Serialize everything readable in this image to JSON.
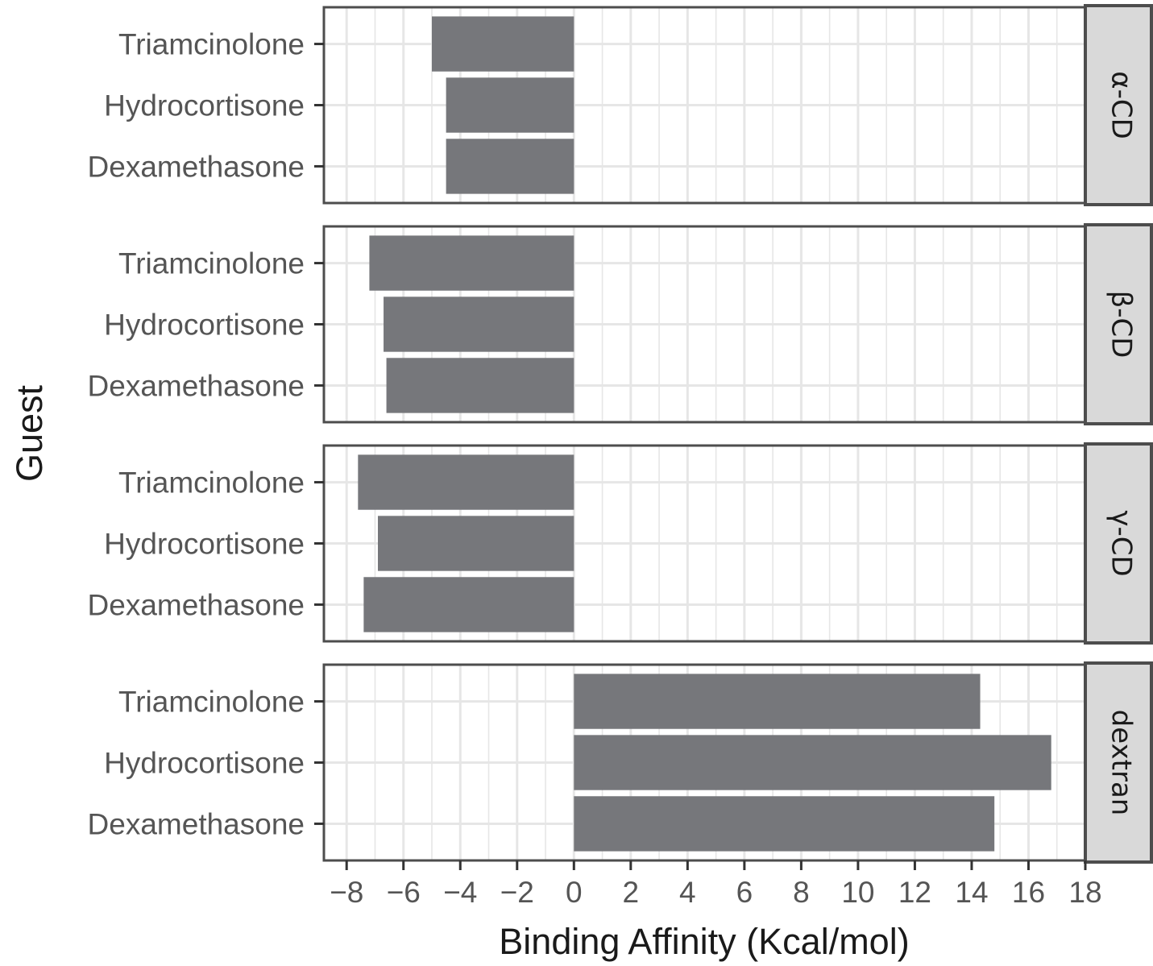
{
  "chart_data": {
    "type": "bar",
    "orientation": "horizontal",
    "facets": [
      {
        "name": "α-CD",
        "categories": [
          "Dexamethasone",
          "Hydrocortisone",
          "Triamcinolone"
        ],
        "values": [
          -4.5,
          -4.5,
          -5.0
        ]
      },
      {
        "name": "β-CD",
        "categories": [
          "Dexamethasone",
          "Hydrocortisone",
          "Triamcinolone"
        ],
        "values": [
          -6.6,
          -6.7,
          -7.2
        ]
      },
      {
        "name": "γ-CD",
        "categories": [
          "Dexamethasone",
          "Hydrocortisone",
          "Triamcinolone"
        ],
        "values": [
          -7.4,
          -6.9,
          -7.6
        ]
      },
      {
        "name": "dextran",
        "categories": [
          "Dexamethasone",
          "Hydrocortisone",
          "Triamcinolone"
        ],
        "values": [
          14.8,
          16.8,
          14.3
        ]
      }
    ],
    "xlabel": "Binding Affinity (Kcal/mol)",
    "ylabel": "Guest",
    "xlim": [
      -8.8,
      18
    ],
    "xticks": [
      "−8",
      "−6",
      "−4",
      "−2",
      "0",
      "2",
      "4",
      "6",
      "8",
      "10",
      "12",
      "14",
      "16",
      "18"
    ],
    "xtick_values": [
      -8,
      -6,
      -4,
      -2,
      0,
      2,
      4,
      6,
      8,
      10,
      12,
      14,
      16,
      18
    ],
    "grid": true,
    "colors": {
      "bar": "#76777b",
      "grid": "#e6e6e6",
      "panel_border": "#4d4d4d",
      "strip_fill": "#d9d9d9"
    }
  }
}
